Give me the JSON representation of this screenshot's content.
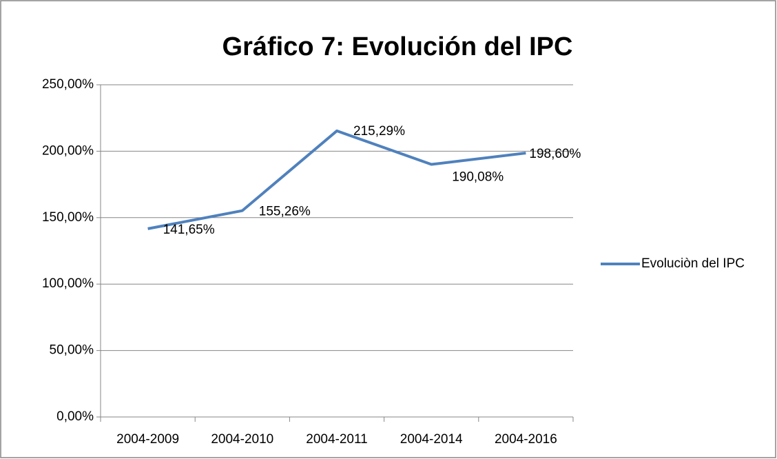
{
  "chart_data": {
    "type": "line",
    "title": "Gráfico 7: Evolución del IPC",
    "categories": [
      "2004-2009",
      "2004-2010",
      "2004-2011",
      "2004-2014",
      "2004-2016"
    ],
    "series": [
      {
        "name": "Evoluciòn del IPC",
        "color": "#4f81bd",
        "values": [
          141.65,
          155.26,
          215.29,
          190.08,
          198.6
        ],
        "value_labels": [
          "141,65%",
          "155,26%",
          "215,29%",
          "190,08%",
          "198,60%"
        ]
      }
    ],
    "ylim": [
      0,
      250
    ],
    "yticks": [
      {
        "value": 0,
        "label": "0,00%"
      },
      {
        "value": 50,
        "label": "50,00%"
      },
      {
        "value": 100,
        "label": "100,00%"
      },
      {
        "value": 150,
        "label": "150,00%"
      },
      {
        "value": 200,
        "label": "200,00%"
      },
      {
        "value": 250,
        "label": "250,00%"
      }
    ],
    "grid": true,
    "legend": "right"
  }
}
